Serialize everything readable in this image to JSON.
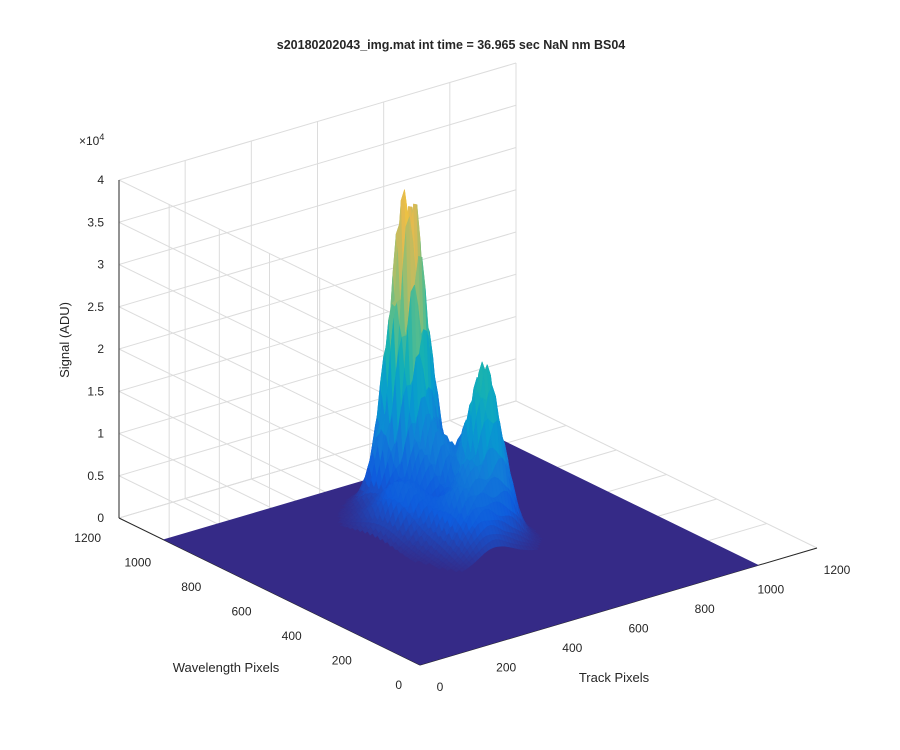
{
  "chart_data": {
    "type": "surface",
    "title": "s20180202043_img.mat int time = 36.965 sec  NaN nm BS04",
    "xlabel": "Track Pixels",
    "ylabel": "Wavelength Pixels",
    "zlabel": "Signal (ADU)",
    "xlim": [
      0,
      1200
    ],
    "ylim": [
      0,
      1200
    ],
    "zlim": [
      0,
      40000
    ],
    "x_ticks": [
      "0",
      "200",
      "400",
      "600",
      "800",
      "1000",
      "1200"
    ],
    "y_ticks": [
      "0",
      "200",
      "400",
      "600",
      "800",
      "1000",
      "1200"
    ],
    "z_ticks": [
      "0",
      "0.5",
      "1",
      "1.5",
      "2",
      "2.5",
      "3",
      "3.5",
      "4"
    ],
    "z_multiplier": "×10",
    "z_multiplier_exp": "4",
    "data_extent": {
      "x": [
        0,
        1024
      ],
      "y": [
        0,
        1024
      ]
    },
    "peak": {
      "x": 600,
      "y": 840,
      "value": 33000
    },
    "secondary_peak": {
      "x": 620,
      "y": 560,
      "value": 17500
    },
    "baseline": 0,
    "grid": true,
    "colormap": "parula"
  }
}
